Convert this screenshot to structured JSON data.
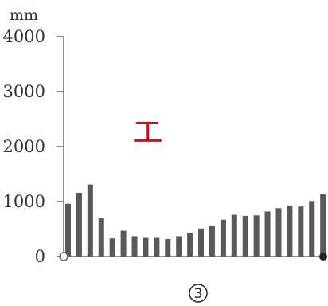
{
  "chart_data": {
    "type": "bar",
    "unit_label": "mm",
    "panel_label": "3",
    "yticks": [
      0,
      1000,
      2000,
      3000,
      4000
    ],
    "ylim": [
      0,
      4000
    ],
    "values": [
      960,
      1160,
      1310,
      700,
      330,
      470,
      370,
      340,
      340,
      320,
      370,
      430,
      510,
      560,
      670,
      760,
      740,
      750,
      820,
      880,
      930,
      910,
      1010,
      1130
    ],
    "marker": {
      "x_index": 7.2,
      "low": 2110,
      "high": 2430
    },
    "colors": {
      "bar": "#595959",
      "axis": "#666666",
      "marker": "#cc1111",
      "start_dot": "#ffffff",
      "end_dot": "#222222"
    }
  }
}
